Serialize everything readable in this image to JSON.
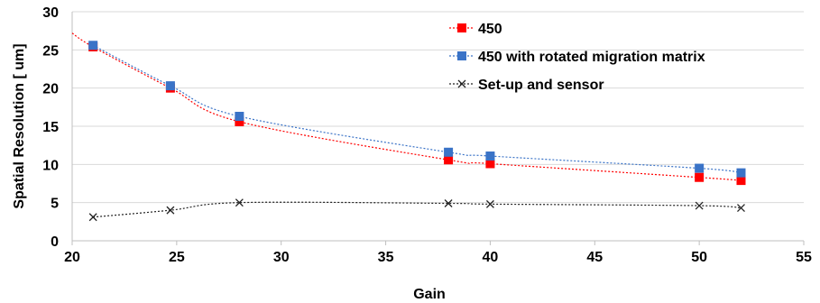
{
  "chart_data": {
    "type": "line",
    "title": "",
    "xlabel": "Gain",
    "ylabel": "Spatial Resolution [ um]",
    "xlim": [
      20,
      55
    ],
    "ylim": [
      0,
      30
    ],
    "xticks": [
      20,
      25,
      30,
      35,
      40,
      45,
      50,
      55
    ],
    "yticks": [
      0,
      5,
      10,
      15,
      20,
      25,
      30
    ],
    "grid": "horizontal",
    "legend_position": "top-right",
    "series": [
      {
        "name": "450",
        "color": "#ff0000",
        "marker": "square",
        "line": "dotted",
        "x": [
          21,
          24.7,
          28,
          38,
          40,
          50,
          52
        ],
        "y": [
          25.4,
          20.0,
          15.6,
          10.6,
          10.1,
          8.3,
          7.9
        ],
        "trend_start": [
          20,
          27.2
        ]
      },
      {
        "name": "450 with rotated  migration matrix",
        "color": "#3a73c7",
        "marker": "square",
        "line": "dotted",
        "x": [
          21,
          24.7,
          28,
          38,
          40,
          50,
          52
        ],
        "y": [
          25.6,
          20.3,
          16.3,
          11.6,
          11.1,
          9.5,
          8.9
        ]
      },
      {
        "name": "Set-up and sensor",
        "color": "#222222",
        "marker": "x",
        "line": "dotted",
        "x": [
          21,
          24.7,
          28,
          38,
          40,
          50,
          52
        ],
        "y": [
          3.1,
          4.0,
          5.0,
          4.9,
          4.8,
          4.6,
          4.3
        ]
      }
    ]
  }
}
